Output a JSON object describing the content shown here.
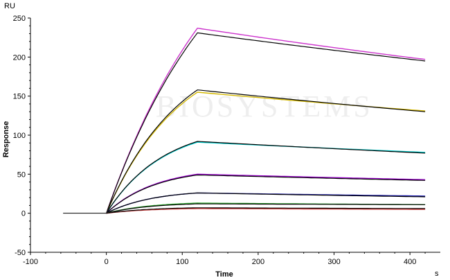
{
  "chart_data": {
    "type": "line",
    "title": "",
    "xlabel": "Time",
    "ylabel": "Response",
    "x_unit": "s",
    "y_unit": "RU",
    "xlim": [
      -100,
      440
    ],
    "ylim": [
      -50,
      250
    ],
    "x_ticks": [
      -100,
      0,
      100,
      200,
      300,
      400
    ],
    "y_ticks": [
      -50,
      0,
      50,
      100,
      150,
      200,
      250
    ],
    "grid": false,
    "legend": "none",
    "watermark": "BIOSYSTEMS",
    "baseline": {
      "x": [
        -57,
        0
      ],
      "y": 0
    },
    "injection_start": 0,
    "injection_end": 120,
    "end_time": 420,
    "series": [
      {
        "color": "#cc33cc",
        "peak": 237,
        "end": 197,
        "fit": false
      },
      {
        "color": "#000000",
        "peak": 231,
        "end": 195,
        "fit": true
      },
      {
        "color": "#d4b800",
        "peak": 155,
        "end": 131,
        "fit": false
      },
      {
        "color": "#000000",
        "peak": 158,
        "end": 130,
        "fit": true
      },
      {
        "color": "#00cccc",
        "peak": 91,
        "end": 78,
        "fit": false
      },
      {
        "color": "#000000",
        "peak": 92,
        "end": 77,
        "fit": true
      },
      {
        "color": "#9900cc",
        "peak": 50,
        "end": 43,
        "fit": false
      },
      {
        "color": "#000000",
        "peak": 49,
        "end": 42,
        "fit": true
      },
      {
        "color": "#1a1aaa",
        "peak": 26,
        "end": 22,
        "fit": false
      },
      {
        "color": "#000000",
        "peak": 26,
        "end": 21,
        "fit": true
      },
      {
        "color": "#33aa33",
        "peak": 13,
        "end": 11,
        "fit": false
      },
      {
        "color": "#000000",
        "peak": 12,
        "end": 11,
        "fit": true
      },
      {
        "color": "#cc3333",
        "peak": 6,
        "end": 5,
        "fit": false
      },
      {
        "color": "#000000",
        "peak": 7,
        "end": 6,
        "fit": true
      }
    ]
  }
}
